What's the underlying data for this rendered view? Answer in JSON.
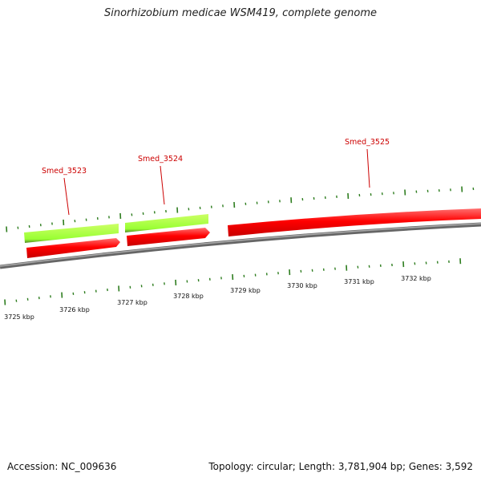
{
  "title": "Sinorhizobium medicae WSM419, complete genome",
  "footer": {
    "accession": "Accession: NC_009636",
    "summary": "Topology: circular; Length: 3,781,904 bp; Genes: 3,592"
  },
  "scale": {
    "unit": "kbp",
    "labels": [
      "3725 kbp",
      "3726 kbp",
      "3727 kbp",
      "3728 kbp",
      "3729 kbp",
      "3730 kbp",
      "3731 kbp",
      "3732 kbp"
    ]
  },
  "genes": [
    {
      "name": "Smed_3523"
    },
    {
      "name": "Smed_3524"
    },
    {
      "name": "Smed_3525"
    }
  ],
  "colors": {
    "cds": "#ff0000",
    "gene": "#99ff33",
    "backbone": "#888888",
    "ticks": "#2e7d1f",
    "label": "#cc0000"
  }
}
